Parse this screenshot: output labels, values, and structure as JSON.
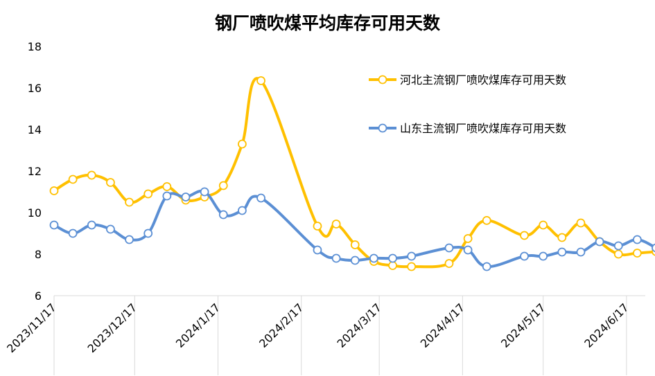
{
  "chart_data": {
    "type": "line",
    "title": "钢厂喷吹煤平均库存可用天数",
    "xlabel": "",
    "ylabel": "",
    "ylim": [
      6,
      18
    ],
    "yticks": [
      6,
      8,
      10,
      12,
      14,
      16,
      18
    ],
    "xlim": [
      "2023-11-17",
      "2024-06-24"
    ],
    "xticks": [
      "2023/11/17",
      "2023/12/17",
      "2024/1/17",
      "2024/2/17",
      "2024/3/17",
      "2024/4/17",
      "2024/5/17",
      "2024/6/17"
    ],
    "grid": false,
    "legend_position": "top-right",
    "series": [
      {
        "name": "河北主流钢厂喷吹煤库存可用天数",
        "color": "#FFC000",
        "x": [
          "2023-11-17",
          "2023-11-24",
          "2023-12-01",
          "2023-12-08",
          "2023-12-15",
          "2023-12-22",
          "2023-12-29",
          "2024-01-05",
          "2024-01-12",
          "2024-01-19",
          "2024-01-26",
          "2024-02-02",
          "2024-02-23",
          "2024-03-01",
          "2024-03-08",
          "2024-03-15",
          "2024-03-22",
          "2024-03-29",
          "2024-04-12",
          "2024-04-19",
          "2024-04-26",
          "2024-05-10",
          "2024-05-17",
          "2024-05-24",
          "2024-05-31",
          "2024-06-07",
          "2024-06-14",
          "2024-06-21",
          "2024-06-28"
        ],
        "values": [
          11.05,
          11.6,
          11.8,
          11.45,
          10.5,
          10.9,
          11.25,
          10.6,
          10.75,
          11.3,
          13.3,
          16.35,
          9.35,
          9.45,
          8.45,
          7.65,
          7.45,
          7.4,
          7.55,
          8.75,
          9.62,
          8.9,
          9.4,
          8.8,
          9.5,
          8.6,
          8.0,
          8.05,
          8.12
        ]
      },
      {
        "name": "山东主流钢厂喷吹煤库存可用天数",
        "color": "#5B8FD4",
        "x": [
          "2023-11-17",
          "2023-11-24",
          "2023-12-01",
          "2023-12-08",
          "2023-12-15",
          "2023-12-22",
          "2023-12-29",
          "2024-01-05",
          "2024-01-12",
          "2024-01-19",
          "2024-01-26",
          "2024-02-02",
          "2024-02-23",
          "2024-03-01",
          "2024-03-08",
          "2024-03-15",
          "2024-03-22",
          "2024-03-29",
          "2024-04-12",
          "2024-04-19",
          "2024-04-26",
          "2024-05-10",
          "2024-05-17",
          "2024-05-24",
          "2024-05-31",
          "2024-06-07",
          "2024-06-14",
          "2024-06-21",
          "2024-06-28"
        ],
        "values": [
          9.4,
          9.0,
          9.4,
          9.2,
          8.7,
          9.0,
          10.8,
          10.75,
          11.0,
          9.9,
          10.1,
          10.7,
          8.2,
          7.8,
          7.7,
          7.8,
          7.8,
          7.9,
          8.3,
          8.2,
          7.4,
          7.9,
          7.9,
          8.1,
          8.1,
          8.6,
          8.4,
          8.7,
          8.3
        ]
      }
    ]
  }
}
